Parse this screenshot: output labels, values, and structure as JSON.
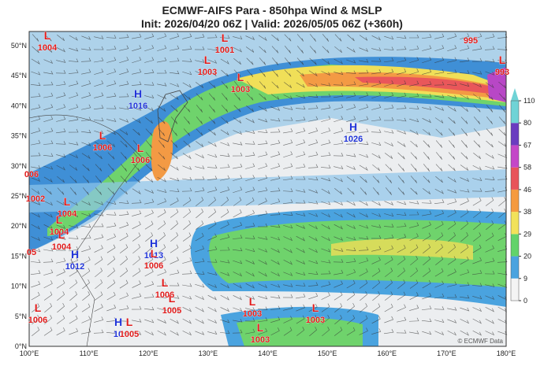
{
  "header": {
    "title": "ECMWF-AIFS Para  - 850hpa Wind & MSLP",
    "subtitle": "Init: 2026/04/20 06Z | Valid: 2026/05/05 06Z (+360h)"
  },
  "axes": {
    "lat_labels": [
      "0°N",
      "5°N",
      "10°N",
      "15°N",
      "20°N",
      "25°N",
      "30°N",
      "35°N",
      "40°N",
      "45°N",
      "50°N"
    ],
    "lon_labels": [
      "100°E",
      "110°E",
      "120°E",
      "130°E",
      "140°E",
      "150°E",
      "160°E",
      "170°E",
      "180°E"
    ]
  },
  "colorbar": {
    "ticks": [
      0,
      9,
      20,
      29,
      38,
      46,
      58,
      67,
      80,
      110
    ],
    "colors": [
      "#f4f4f4",
      "#4aa3df",
      "#62d36a",
      "#f2e25a",
      "#f59a3e",
      "#e8545a",
      "#c447c8",
      "#6a3cc0",
      "#6fd3d6"
    ]
  },
  "systems": [
    {
      "letter": "L",
      "value": 1004
    },
    {
      "letter": "L",
      "value": 1001
    },
    {
      "letter": "L",
      "value": 1003
    },
    {
      "letter": "L",
      "value": 1003
    },
    {
      "letter": "H",
      "value": 1016
    },
    {
      "letter": "L",
      "value": "995"
    },
    {
      "letter": "L",
      "value": "993"
    },
    {
      "letter": "L",
      "value": 1006
    },
    {
      "letter": "L",
      "value": 1006
    },
    {
      "letter": "H",
      "value": 1026
    },
    {
      "letter": "L",
      "value": "006"
    },
    {
      "letter": "L",
      "value": 1002
    },
    {
      "letter": "L",
      "value": 1004
    },
    {
      "letter": "L",
      "value": 1004
    },
    {
      "letter": "L",
      "value": 1004
    },
    {
      "letter": "L",
      "value": "05"
    },
    {
      "letter": "H",
      "value": 1012
    },
    {
      "letter": "H",
      "value": 1013
    },
    {
      "letter": "L",
      "value": 1006
    },
    {
      "letter": "L",
      "value": 1006
    },
    {
      "letter": "L",
      "value": 1005
    },
    {
      "letter": "L",
      "value": 1006
    },
    {
      "letter": "H",
      "value": "10"
    },
    {
      "letter": "L",
      "value": 1005
    },
    {
      "letter": "L",
      "value": 1003
    },
    {
      "letter": "L",
      "value": 1003
    },
    {
      "letter": "L",
      "value": 1003
    }
  ],
  "credit": "© ECMWF Data"
}
